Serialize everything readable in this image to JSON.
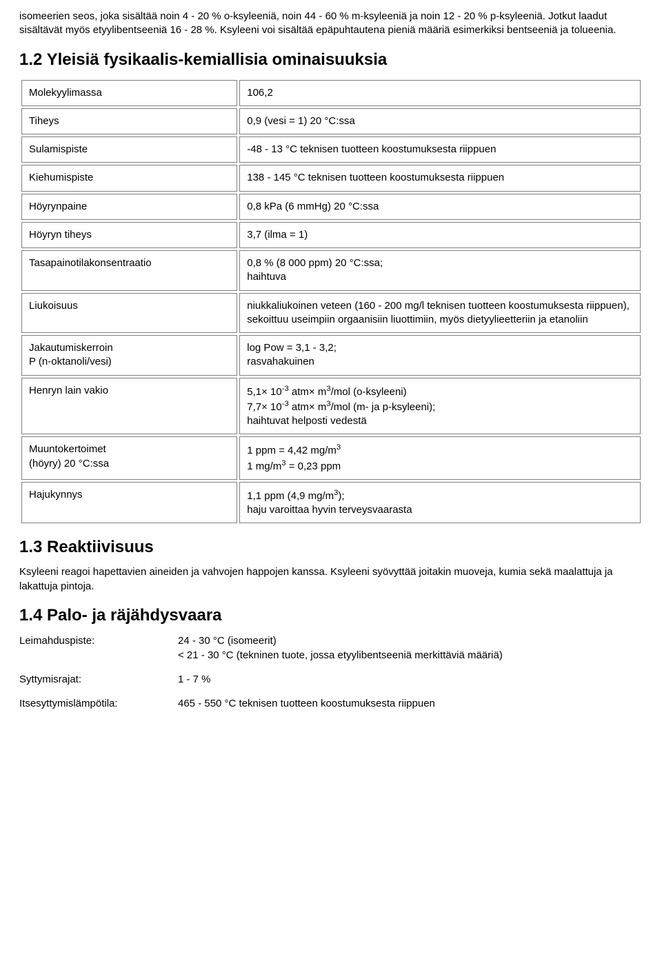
{
  "intro_para": "isomeerien seos, joka sisältää noin 4 - 20 % o-ksyleeniä, noin 44 - 60 % m-ksyleeniä ja noin 12 - 20 % p-ksyleeniä. Jotkut laadut sisältävät myös etyylibentseeniä 16 - 28 %. Ksyleeni voi sisältää epäpuhtautena pieniä määriä esimerkiksi bentseeniä ja tolueenia.",
  "section12_title": "1.2 Yleisiä fysikaalis-kemiallisia ominaisuuksia",
  "props": {
    "molekyylimassa": {
      "label": "Molekyylimassa",
      "value": "106,2"
    },
    "tiheys": {
      "label": "Tiheys",
      "value": "0,9 (vesi = 1) 20 °C:ssa"
    },
    "sulamispiste": {
      "label": "Sulamispiste",
      "value": "-48 - 13 °C teknisen tuotteen koostumuksesta riippuen"
    },
    "kiehumispiste": {
      "label": "Kiehumispiste",
      "value": "138 - 145 °C teknisen tuotteen koostumuksesta riippuen"
    },
    "hoyrynpaine": {
      "label": "Höyrynpaine",
      "value": "0,8 kPa (6 mmHg) 20 °C:ssa"
    },
    "hoyryn_tiheys": {
      "label": "Höyryn tiheys",
      "value": "3,7 (ilma = 1)"
    },
    "tasapaino": {
      "label": "Tasapainotilakonsentraatio",
      "value": "0,8 % (8 000 ppm) 20 °C:ssa;\nhaihtuva"
    },
    "liukoisuus": {
      "label": "Liukoisuus",
      "value": "niukkaliukoinen veteen (160 - 200 mg/l teknisen tuotteen koostumuksesta riippuen), sekoittuu useimpiin orgaanisiin liuottimiin, myös dietyylieetteriin ja etanoliin"
    },
    "jakautumiskerroin": {
      "label": "Jakautumiskerroin\nP (n-oktanoli/vesi)",
      "value": "log Pow = 3,1 - 3,2;\nrasvahakuinen"
    },
    "henryn": {
      "label": "Henryn lain vakio",
      "line1_pre": "5,1× 10",
      "line1_sup": "-3",
      "line1_mid": " atm× m",
      "line1_sup2": "3",
      "line1_post": "/mol (o-ksyleeni)",
      "line2_pre": "7,7× 10",
      "line2_sup": "-3",
      "line2_mid": " atm× m",
      "line2_sup2": "3",
      "line2_post": "/mol (m- ja p-ksyleeni);",
      "line3": "haihtuvat helposti vedestä"
    },
    "muuntokertoimet": {
      "label": "Muuntokertoimet\n(höyry) 20 °C:ssa",
      "line1_pre": "1 ppm = 4,42 mg/m",
      "line1_sup": "3",
      "line2_pre": "1 mg/m",
      "line2_sup": "3",
      "line2_post": " = 0,23 ppm"
    },
    "hajukynnys": {
      "label": "Hajukynnys",
      "line1_pre": "1,1 ppm (4,9 mg/m",
      "line1_sup": "3",
      "line1_post": ");",
      "line2": "haju varoittaa hyvin terveysvaarasta"
    }
  },
  "section13_title": "1.3 Reaktiivisuus",
  "section13_para": "Ksyleeni reagoi hapettavien aineiden ja vahvojen happojen kanssa. Ksyleeni syövyttää joitakin muoveja, kumia sekä maalattuja ja lakattuja pintoja.",
  "section14_title": "1.4 Palo- ja räjähdysvaara",
  "fire": {
    "leimahduspiste": {
      "label": "Leimahduspiste:",
      "value": "24 - 30 °C (isomeerit)\n< 21 - 30 °C (tekninen tuote, jossa etyylibentseeniä merkittäviä määriä)"
    },
    "syttymisrajat": {
      "label": "Syttymisrajat:",
      "value": "1 - 7 %"
    },
    "itsesyttymislampotila": {
      "label": "Itsesyttymislämpötila:",
      "value": "465 - 550 °C teknisen tuotteen koostumuksesta riippuen"
    }
  }
}
